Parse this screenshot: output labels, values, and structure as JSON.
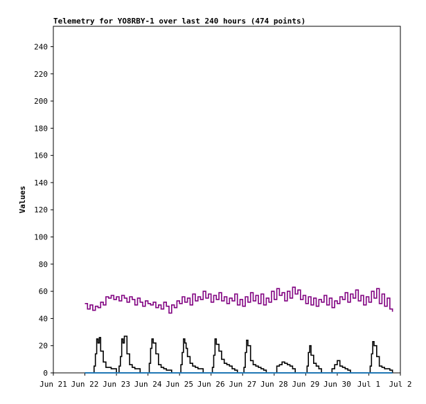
{
  "chart_data": {
    "type": "line",
    "title": "Telemetry for YO8RBY-1 over last 240 hours (474 points)",
    "xlabel": "",
    "ylabel": "Values",
    "ylim": [
      0,
      255
    ],
    "yticks": [
      0,
      20,
      40,
      60,
      80,
      100,
      120,
      140,
      160,
      180,
      200,
      220,
      240
    ],
    "xlim_hours": [
      0,
      264
    ],
    "xtick_labels": [
      "Jun 21",
      "Jun 22",
      "Jun 23",
      "Jun 24",
      "Jun 25",
      "Jun 26",
      "Jun 27",
      "Jun 28",
      "Jun 29",
      "Jun 30",
      "Jul 1",
      "Jul 2"
    ],
    "series": [
      {
        "color": "#800080",
        "x_hours": [
          24,
          26,
          28,
          30,
          32,
          34,
          36,
          38,
          40,
          42,
          44,
          46,
          48,
          50,
          52,
          54,
          56,
          58,
          60,
          62,
          64,
          66,
          68,
          70,
          72,
          74,
          76,
          78,
          80,
          82,
          84,
          86,
          88,
          90,
          92,
          94,
          96,
          98,
          100,
          102,
          104,
          106,
          108,
          110,
          112,
          114,
          116,
          118,
          120,
          122,
          124,
          126,
          128,
          130,
          132,
          134,
          136,
          138,
          140,
          142,
          144,
          146,
          148,
          150,
          152,
          154,
          156,
          158,
          160,
          162,
          164,
          166,
          168,
          170,
          172,
          174,
          176,
          178,
          180,
          182,
          184,
          186,
          188,
          190,
          192,
          194,
          196,
          198,
          200,
          202,
          204,
          206,
          208,
          210,
          212,
          214,
          216,
          218,
          220,
          222,
          224,
          226,
          228,
          230,
          232,
          234,
          236,
          238,
          240,
          242,
          244,
          246,
          248,
          250,
          252,
          254,
          256,
          258
        ],
        "values": [
          51,
          47,
          50,
          46,
          49,
          48,
          52,
          50,
          56,
          55,
          57,
          54,
          56,
          53,
          57,
          55,
          52,
          56,
          54,
          50,
          55,
          52,
          49,
          53,
          51,
          50,
          52,
          48,
          50,
          47,
          52,
          49,
          44,
          50,
          48,
          53,
          51,
          56,
          52,
          55,
          50,
          58,
          53,
          56,
          54,
          60,
          55,
          58,
          52,
          57,
          54,
          59,
          53,
          56,
          51,
          55,
          53,
          58,
          50,
          54,
          49,
          56,
          52,
          59,
          53,
          57,
          51,
          58,
          50,
          55,
          52,
          60,
          54,
          62,
          57,
          59,
          53,
          60,
          55,
          63,
          58,
          61,
          54,
          57,
          51,
          56,
          50,
          55,
          49,
          54,
          52,
          57,
          50,
          55,
          48,
          53,
          51,
          56,
          54,
          59,
          52,
          58,
          55,
          61,
          53,
          57,
          50,
          56,
          52,
          60,
          55,
          62,
          51,
          58,
          49,
          55,
          47,
          45
        ]
      },
      {
        "color": "#000000",
        "x_hours": [
          24,
          28,
          30,
          31,
          32,
          33,
          34,
          35,
          36,
          38,
          40,
          42,
          44,
          46,
          48,
          49,
          50,
          51,
          52,
          53,
          54,
          56,
          58,
          60,
          62,
          64,
          66,
          68,
          70,
          72,
          73,
          74,
          75,
          76,
          78,
          80,
          82,
          84,
          86,
          88,
          90,
          92,
          94,
          96,
          97,
          98,
          99,
          100,
          101,
          102,
          104,
          106,
          108,
          110,
          112,
          114,
          118,
          120,
          121,
          122,
          123,
          124,
          126,
          128,
          130,
          132,
          134,
          136,
          138,
          140,
          142,
          144,
          145,
          146,
          147,
          148,
          150,
          152,
          154,
          156,
          158,
          160,
          162,
          164,
          166,
          168,
          170,
          172,
          174,
          176,
          178,
          180,
          182,
          184,
          186,
          188,
          190,
          192,
          193,
          194,
          195,
          196,
          198,
          200,
          202,
          204,
          206,
          208,
          210,
          212,
          214,
          216,
          218,
          220,
          222,
          224,
          226,
          228,
          230,
          232,
          234,
          236,
          240,
          241,
          242,
          243,
          244,
          246,
          248,
          250,
          252,
          254,
          256,
          258
        ],
        "values": [
          0,
          0,
          0,
          5,
          14,
          25,
          22,
          26,
          16,
          8,
          4,
          4,
          3,
          3,
          0,
          0,
          5,
          12,
          25,
          22,
          27,
          14,
          6,
          4,
          3,
          3,
          0,
          0,
          0,
          0,
          7,
          18,
          25,
          22,
          14,
          6,
          4,
          3,
          2,
          2,
          0,
          0,
          0,
          0,
          6,
          15,
          25,
          22,
          18,
          12,
          7,
          5,
          4,
          3,
          3,
          0,
          0,
          0,
          4,
          13,
          25,
          21,
          16,
          10,
          7,
          6,
          5,
          3,
          2,
          0,
          0,
          0,
          4,
          15,
          24,
          20,
          9,
          6,
          5,
          4,
          3,
          2,
          0,
          0,
          0,
          0,
          5,
          6,
          8,
          7,
          6,
          5,
          3,
          0,
          0,
          0,
          0,
          0,
          5,
          15,
          20,
          13,
          7,
          5,
          3,
          0,
          0,
          0,
          0,
          3,
          6,
          9,
          5,
          4,
          3,
          2,
          0,
          0,
          0,
          0,
          0,
          0,
          0,
          5,
          14,
          23,
          20,
          12,
          5,
          4,
          3,
          3,
          2,
          0
        ]
      },
      {
        "color": "#1f77b4",
        "x_hours": [
          24,
          258
        ],
        "values": [
          0,
          0
        ]
      }
    ]
  }
}
